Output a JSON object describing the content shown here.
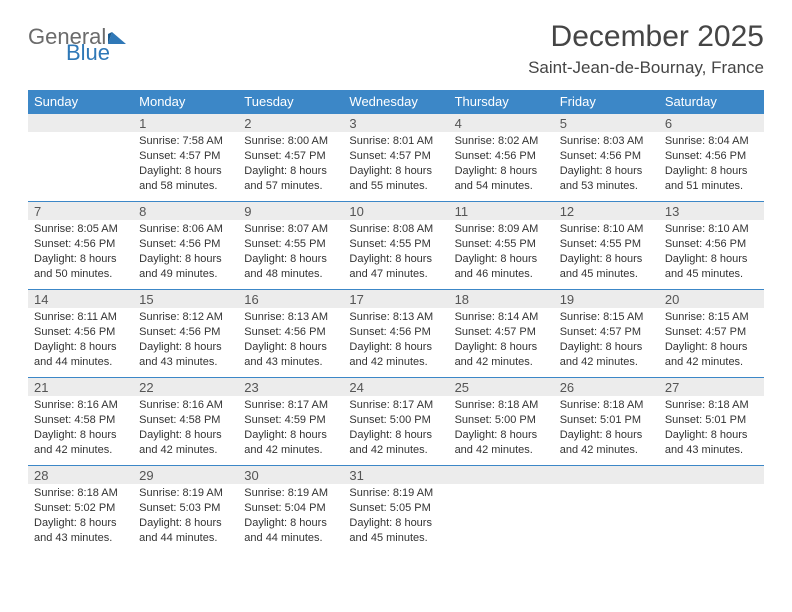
{
  "brand": {
    "part1": "General",
    "part2": "Blue"
  },
  "title": "December 2025",
  "location": "Saint-Jean-de-Bournay, France",
  "colors": {
    "header_bg": "#3c87c7",
    "header_text": "#ffffff",
    "daynum_bg": "#ececec",
    "daynum_text": "#555555",
    "body_text": "#333333",
    "rule": "#3c87c7",
    "title_text": "#454545",
    "logo_gray": "#6b6b6b",
    "logo_blue": "#2f78b7"
  },
  "weekdays": [
    "Sunday",
    "Monday",
    "Tuesday",
    "Wednesday",
    "Thursday",
    "Friday",
    "Saturday"
  ],
  "weeks": [
    [
      null,
      {
        "n": "1",
        "sr": "7:58 AM",
        "ss": "4:57 PM",
        "dl": "8 hours and 58 minutes."
      },
      {
        "n": "2",
        "sr": "8:00 AM",
        "ss": "4:57 PM",
        "dl": "8 hours and 57 minutes."
      },
      {
        "n": "3",
        "sr": "8:01 AM",
        "ss": "4:57 PM",
        "dl": "8 hours and 55 minutes."
      },
      {
        "n": "4",
        "sr": "8:02 AM",
        "ss": "4:56 PM",
        "dl": "8 hours and 54 minutes."
      },
      {
        "n": "5",
        "sr": "8:03 AM",
        "ss": "4:56 PM",
        "dl": "8 hours and 53 minutes."
      },
      {
        "n": "6",
        "sr": "8:04 AM",
        "ss": "4:56 PM",
        "dl": "8 hours and 51 minutes."
      }
    ],
    [
      {
        "n": "7",
        "sr": "8:05 AM",
        "ss": "4:56 PM",
        "dl": "8 hours and 50 minutes."
      },
      {
        "n": "8",
        "sr": "8:06 AM",
        "ss": "4:56 PM",
        "dl": "8 hours and 49 minutes."
      },
      {
        "n": "9",
        "sr": "8:07 AM",
        "ss": "4:55 PM",
        "dl": "8 hours and 48 minutes."
      },
      {
        "n": "10",
        "sr": "8:08 AM",
        "ss": "4:55 PM",
        "dl": "8 hours and 47 minutes."
      },
      {
        "n": "11",
        "sr": "8:09 AM",
        "ss": "4:55 PM",
        "dl": "8 hours and 46 minutes."
      },
      {
        "n": "12",
        "sr": "8:10 AM",
        "ss": "4:55 PM",
        "dl": "8 hours and 45 minutes."
      },
      {
        "n": "13",
        "sr": "8:10 AM",
        "ss": "4:56 PM",
        "dl": "8 hours and 45 minutes."
      }
    ],
    [
      {
        "n": "14",
        "sr": "8:11 AM",
        "ss": "4:56 PM",
        "dl": "8 hours and 44 minutes."
      },
      {
        "n": "15",
        "sr": "8:12 AM",
        "ss": "4:56 PM",
        "dl": "8 hours and 43 minutes."
      },
      {
        "n": "16",
        "sr": "8:13 AM",
        "ss": "4:56 PM",
        "dl": "8 hours and 43 minutes."
      },
      {
        "n": "17",
        "sr": "8:13 AM",
        "ss": "4:56 PM",
        "dl": "8 hours and 42 minutes."
      },
      {
        "n": "18",
        "sr": "8:14 AM",
        "ss": "4:57 PM",
        "dl": "8 hours and 42 minutes."
      },
      {
        "n": "19",
        "sr": "8:15 AM",
        "ss": "4:57 PM",
        "dl": "8 hours and 42 minutes."
      },
      {
        "n": "20",
        "sr": "8:15 AM",
        "ss": "4:57 PM",
        "dl": "8 hours and 42 minutes."
      }
    ],
    [
      {
        "n": "21",
        "sr": "8:16 AM",
        "ss": "4:58 PM",
        "dl": "8 hours and 42 minutes."
      },
      {
        "n": "22",
        "sr": "8:16 AM",
        "ss": "4:58 PM",
        "dl": "8 hours and 42 minutes."
      },
      {
        "n": "23",
        "sr": "8:17 AM",
        "ss": "4:59 PM",
        "dl": "8 hours and 42 minutes."
      },
      {
        "n": "24",
        "sr": "8:17 AM",
        "ss": "5:00 PM",
        "dl": "8 hours and 42 minutes."
      },
      {
        "n": "25",
        "sr": "8:18 AM",
        "ss": "5:00 PM",
        "dl": "8 hours and 42 minutes."
      },
      {
        "n": "26",
        "sr": "8:18 AM",
        "ss": "5:01 PM",
        "dl": "8 hours and 42 minutes."
      },
      {
        "n": "27",
        "sr": "8:18 AM",
        "ss": "5:01 PM",
        "dl": "8 hours and 43 minutes."
      }
    ],
    [
      {
        "n": "28",
        "sr": "8:18 AM",
        "ss": "5:02 PM",
        "dl": "8 hours and 43 minutes."
      },
      {
        "n": "29",
        "sr": "8:19 AM",
        "ss": "5:03 PM",
        "dl": "8 hours and 44 minutes."
      },
      {
        "n": "30",
        "sr": "8:19 AM",
        "ss": "5:04 PM",
        "dl": "8 hours and 44 minutes."
      },
      {
        "n": "31",
        "sr": "8:19 AM",
        "ss": "5:05 PM",
        "dl": "8 hours and 45 minutes."
      },
      null,
      null,
      null
    ]
  ],
  "labels": {
    "sunrise": "Sunrise:",
    "sunset": "Sunset:",
    "daylight": "Daylight:"
  }
}
